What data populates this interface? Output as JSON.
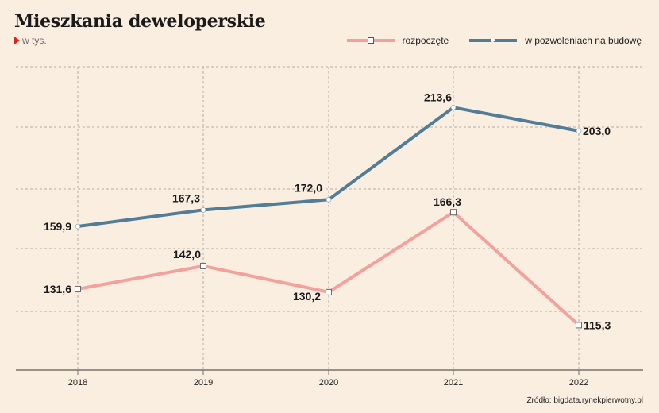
{
  "title": "Mieszkania deweloperskie",
  "subtitle": "w tys.",
  "source": "Źródło: bigdata.rynekpierwotny.pl",
  "legend": {
    "series1": "rozpoczęte",
    "series2": "w pozwoleniach na budowę"
  },
  "colors": {
    "background": "#faeee1",
    "rozpoczete": "#f4a09c",
    "pozwolenia": "#517d98",
    "accent": "#d9261c"
  },
  "chart_data": {
    "type": "line",
    "x": [
      "2018",
      "2019",
      "2020",
      "2021",
      "2022"
    ],
    "series": [
      {
        "name": "rozpoczęte",
        "values": [
          131.6,
          142.0,
          130.2,
          166.3,
          115.3
        ],
        "labels": [
          "131,6",
          "142,0",
          "130,2",
          "166,3",
          "115,3"
        ],
        "marker": "square"
      },
      {
        "name": "w pozwoleniach na budowę",
        "values": [
          159.9,
          167.3,
          172.0,
          213.6,
          203.0
        ],
        "labels": [
          "159,9",
          "167,3",
          "172,0",
          "213,6",
          "203,0"
        ],
        "marker": "circle"
      }
    ],
    "title": "Mieszkania deweloperskie",
    "xlabel": "",
    "ylabel": "",
    "ylim": [
      95,
      232
    ],
    "grid": true,
    "legend_position": "top-right"
  }
}
